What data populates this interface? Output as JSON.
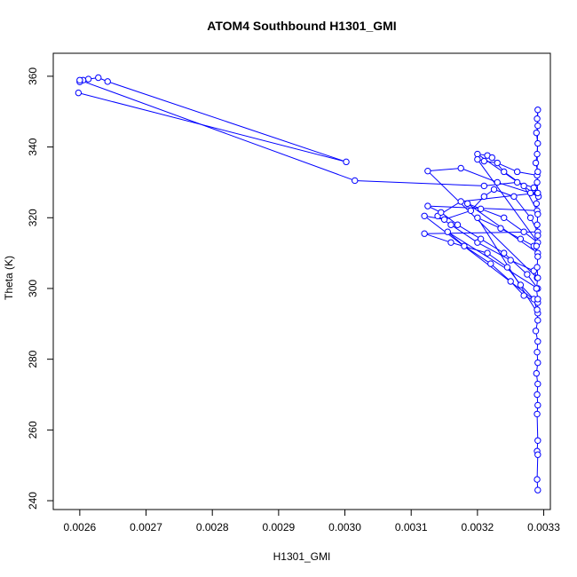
{
  "chart_data": {
    "type": "line",
    "title": "ATOM4 Southbound H1301_GMI",
    "xlabel": "H1301_GMI",
    "ylabel": "Theta (K)",
    "xlim": [
      0.00256,
      0.00331
    ],
    "ylim": [
      237.5,
      366.5
    ],
    "xticks": [
      "0.0026",
      "0.0027",
      "0.0028",
      "0.0029",
      "0.0030",
      "0.0031",
      "0.0032",
      "0.0033"
    ],
    "xtick_values": [
      0.0026,
      0.0027,
      0.0028,
      0.0029,
      0.003,
      0.0031,
      0.0032,
      0.0033
    ],
    "yticks": [
      "240",
      "260",
      "280",
      "300",
      "320",
      "340",
      "360"
    ],
    "ytick_values": [
      240,
      260,
      280,
      300,
      320,
      340,
      360
    ],
    "grid": false,
    "marker": "open-circle",
    "color": "#0000ff",
    "series": [
      {
        "values": [
          [
            0.002598,
            355.3
          ],
          [
            0.003002,
            335.8
          ],
          [
            0.002642,
            358.5
          ],
          [
            0.002628,
            359.6
          ],
          [
            0.002613,
            359.2
          ],
          [
            0.002605,
            358.9
          ],
          [
            0.0026,
            358.4
          ],
          [
            0.0026,
            358.9
          ],
          [
            0.003015,
            330.5
          ],
          [
            0.00321,
            329.0
          ],
          [
            0.00326,
            330.0
          ],
          [
            0.003285,
            328.5
          ],
          [
            0.00329,
            327.0
          ],
          [
            0.003175,
            324.6
          ],
          [
            0.00314,
            320.5
          ],
          [
            0.00316,
            318.0
          ],
          [
            0.0032,
            313.0
          ],
          [
            0.00325,
            308.0
          ],
          [
            0.003285,
            305.0
          ],
          [
            0.00329,
            303.0
          ],
          [
            0.003125,
            333.2
          ],
          [
            0.003175,
            334.0
          ],
          [
            0.00323,
            330.0
          ],
          [
            0.00328,
            327.0
          ],
          [
            0.003292,
            326.0
          ],
          [
            0.0032,
            338.0
          ],
          [
            0.003215,
            337.6
          ],
          [
            0.003222,
            337.0
          ],
          [
            0.00324,
            333.0
          ],
          [
            0.00327,
            329.0
          ],
          [
            0.00329,
            322.0
          ],
          [
            0.003125,
            323.3
          ],
          [
            0.003145,
            321.5
          ],
          [
            0.00317,
            318.0
          ],
          [
            0.003205,
            314.0
          ],
          [
            0.00324,
            310.0
          ],
          [
            0.003275,
            304.0
          ],
          [
            0.003291,
            300.0
          ],
          [
            0.003155,
            316.0
          ],
          [
            0.00318,
            312.0
          ],
          [
            0.00322,
            307.0
          ],
          [
            0.00325,
            302.0
          ],
          [
            0.00327,
            298.0
          ],
          [
            0.003291,
            296.0
          ],
          [
            0.00312,
            320.5
          ],
          [
            0.00315,
            319.5
          ],
          [
            0.00319,
            322.0
          ],
          [
            0.00321,
            326.0
          ],
          [
            0.003225,
            328.0
          ],
          [
            0.003255,
            326.0
          ],
          [
            0.00328,
            320.0
          ],
          [
            0.003291,
            316.0
          ],
          [
            0.00312,
            315.5
          ],
          [
            0.00316,
            313.0
          ],
          [
            0.003215,
            310.0
          ],
          [
            0.003245,
            306.0
          ],
          [
            0.003265,
            301.0
          ],
          [
            0.003285,
            297.0
          ],
          [
            0.003291,
            293.0
          ],
          [
            0.0032,
            320.0
          ],
          [
            0.003235,
            317.0
          ],
          [
            0.003265,
            314.0
          ],
          [
            0.003285,
            312.0
          ],
          [
            0.003291,
            310.0
          ],
          [
            0.003185,
            324.0
          ],
          [
            0.003205,
            322.5
          ],
          [
            0.00324,
            320.0
          ],
          [
            0.00327,
            316.0
          ],
          [
            0.003291,
            313.0
          ],
          [
            0.0032,
            336.5
          ],
          [
            0.00321,
            336.0
          ],
          [
            0.00323,
            335.5
          ],
          [
            0.00326,
            333.0
          ],
          [
            0.00329,
            332.0
          ],
          [
            0.003291,
            350.5
          ],
          [
            0.00329,
            348.0
          ],
          [
            0.003291,
            346.0
          ],
          [
            0.003289,
            344.0
          ],
          [
            0.003291,
            341.0
          ],
          [
            0.00329,
            338.0
          ],
          [
            0.003288,
            335.5
          ],
          [
            0.003291,
            333.0
          ],
          [
            0.00329,
            330.0
          ],
          [
            0.003291,
            327.0
          ],
          [
            0.003289,
            324.0
          ],
          [
            0.003291,
            321.0
          ],
          [
            0.00329,
            318.0
          ],
          [
            0.003291,
            315.0
          ],
          [
            0.003289,
            312.0
          ],
          [
            0.003291,
            309.0
          ],
          [
            0.00329,
            306.0
          ],
          [
            0.003291,
            303.0
          ],
          [
            0.003289,
            300.0
          ],
          [
            0.003291,
            297.0
          ],
          [
            0.00329,
            294.0
          ],
          [
            0.003291,
            291.0
          ],
          [
            0.003288,
            288.0
          ],
          [
            0.003291,
            285.0
          ],
          [
            0.00329,
            282.0
          ],
          [
            0.003291,
            279.0
          ],
          [
            0.003289,
            276.0
          ],
          [
            0.003291,
            273.0
          ],
          [
            0.00329,
            270.0
          ],
          [
            0.003291,
            267.0
          ],
          [
            0.00329,
            264.5
          ],
          [
            0.003291,
            257.0
          ],
          [
            0.00329,
            254.0
          ],
          [
            0.003291,
            253.0
          ],
          [
            0.00329,
            246.0
          ],
          [
            0.003291,
            243.0
          ]
        ]
      }
    ]
  }
}
